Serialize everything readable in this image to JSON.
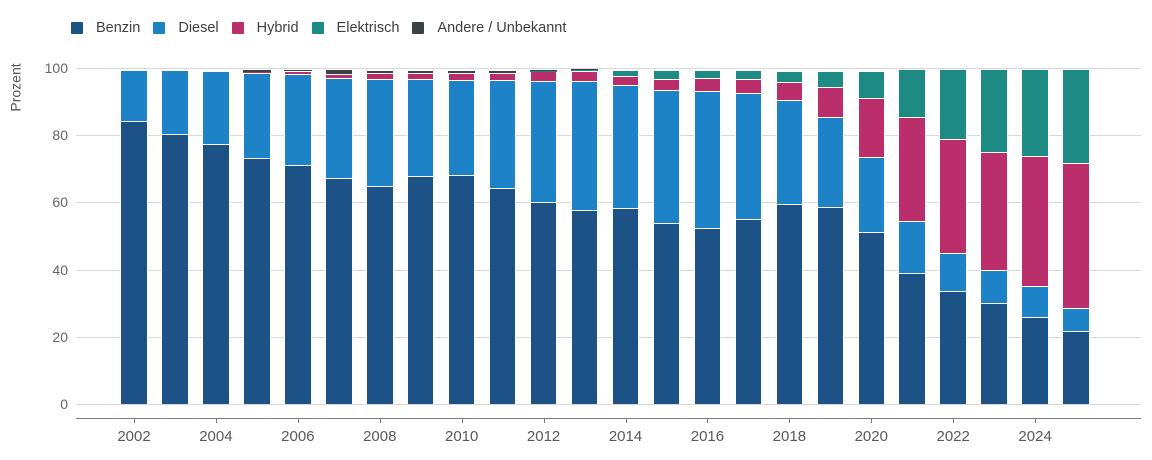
{
  "chart_data": {
    "type": "bar",
    "stacked": true,
    "title": "",
    "ylabel": "Prozent",
    "xlabel": "",
    "ylim": [
      0,
      100
    ],
    "grid": true,
    "legend_position": "top-left",
    "yticks": [
      0,
      20,
      40,
      60,
      80,
      100
    ],
    "xtick_labels": [
      "2002",
      "2004",
      "2006",
      "2008",
      "2010",
      "2012",
      "2014",
      "2016",
      "2018",
      "2020",
      "2022",
      "2024"
    ],
    "categories": [
      "2002",
      "2003",
      "2004",
      "2005",
      "2006",
      "2007",
      "2008",
      "2009",
      "2010",
      "2011",
      "2012",
      "2013",
      "2014",
      "2015",
      "2016",
      "2017",
      "2018",
      "2019",
      "2020",
      "2021",
      "2022",
      "2023",
      "2024",
      "2025"
    ],
    "series": [
      {
        "name": "Benzin",
        "color": "#1d5286",
        "values": [
          84.2,
          80.4,
          77.4,
          73.2,
          71.0,
          67.2,
          65.0,
          67.8,
          68.2,
          64.4,
          60.0,
          57.6,
          58.2,
          54.0,
          52.5,
          55.0,
          59.5,
          58.5,
          51.3,
          39.0,
          33.5,
          30.0,
          26.0,
          21.8
        ]
      },
      {
        "name": "Diesel",
        "color": "#1e83c6",
        "values": [
          15.2,
          19.0,
          21.7,
          25.3,
          27.3,
          29.7,
          31.6,
          28.8,
          28.2,
          32.0,
          36.2,
          38.6,
          36.7,
          39.4,
          40.8,
          37.6,
          30.9,
          26.9,
          22.2,
          15.5,
          11.5,
          10.0,
          9.0,
          6.9
        ]
      },
      {
        "name": "Hybrid",
        "color": "#ba2e6c",
        "values": [
          0,
          0,
          0,
          0.3,
          0.9,
          1.4,
          1.8,
          1.8,
          2.1,
          2.2,
          2.8,
          3.0,
          2.8,
          3.3,
          3.7,
          4.1,
          5.3,
          9.0,
          17.6,
          31.0,
          34.0,
          34.9,
          38.7,
          42.9
        ]
      },
      {
        "name": "Elektrisch",
        "color": "#1d8b84",
        "values": [
          0,
          0,
          0,
          0,
          0,
          0,
          0,
          0,
          0,
          0,
          0.1,
          0.2,
          1.8,
          2.8,
          2.4,
          2.6,
          3.4,
          4.6,
          8.1,
          14.1,
          20.6,
          24.7,
          26.0,
          28.1
        ]
      },
      {
        "name": "Andere / Unbekannt",
        "color": "#3d4247",
        "values": [
          0,
          0,
          0,
          0.6,
          0.2,
          1.3,
          1.0,
          0.9,
          0.6,
          0.4,
          0.2,
          0.2,
          0,
          0,
          0,
          0,
          0,
          0,
          0,
          0,
          0,
          0,
          0,
          0
        ]
      }
    ]
  }
}
